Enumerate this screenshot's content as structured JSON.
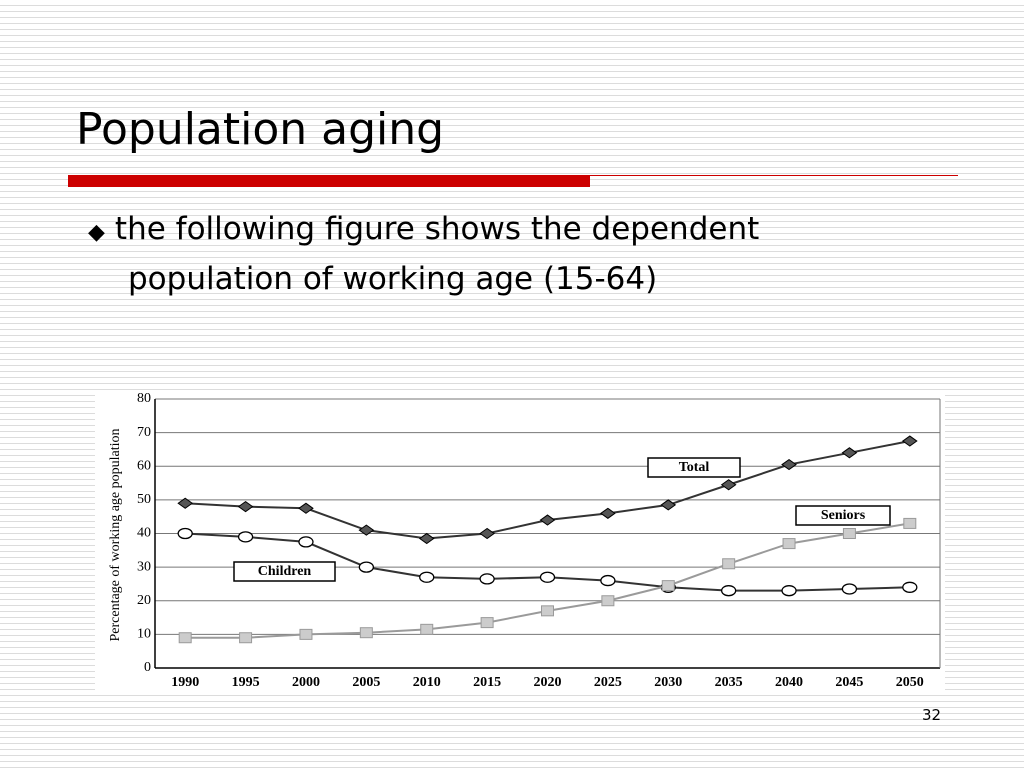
{
  "slide": {
    "title": "Population aging",
    "bullet": "the following figure shows the dependent population of working age (15-64)",
    "page_number": "32"
  },
  "chart_data": {
    "type": "line",
    "y_label": "Percentage of working age population",
    "categories": [
      "1990",
      "1995",
      "2000",
      "2005",
      "2010",
      "2015",
      "2020",
      "2025",
      "2030",
      "2035",
      "2040",
      "2045",
      "2050"
    ],
    "series": [
      {
        "name": "Total",
        "color": "#333333",
        "marker": "diamond",
        "values": [
          49,
          48,
          47.5,
          41,
          38.5,
          40,
          44,
          46,
          48.5,
          54.5,
          60.5,
          64,
          67.5
        ]
      },
      {
        "name": "Children",
        "color": "#333333",
        "marker": "circle",
        "values": [
          40,
          39,
          37.5,
          30,
          27,
          26.5,
          27,
          26,
          24,
          23,
          23,
          23.5,
          24
        ]
      },
      {
        "name": "Seniors",
        "color": "#9a9a9a",
        "marker": "square",
        "values": [
          9,
          9,
          10,
          10.5,
          11.5,
          13.5,
          17,
          20,
          24.5,
          31,
          37,
          40,
          43
        ]
      }
    ],
    "ylim": [
      0,
      80
    ],
    "yticks": [
      0,
      10,
      20,
      30,
      40,
      50,
      60,
      70,
      80
    ],
    "grid": true
  }
}
